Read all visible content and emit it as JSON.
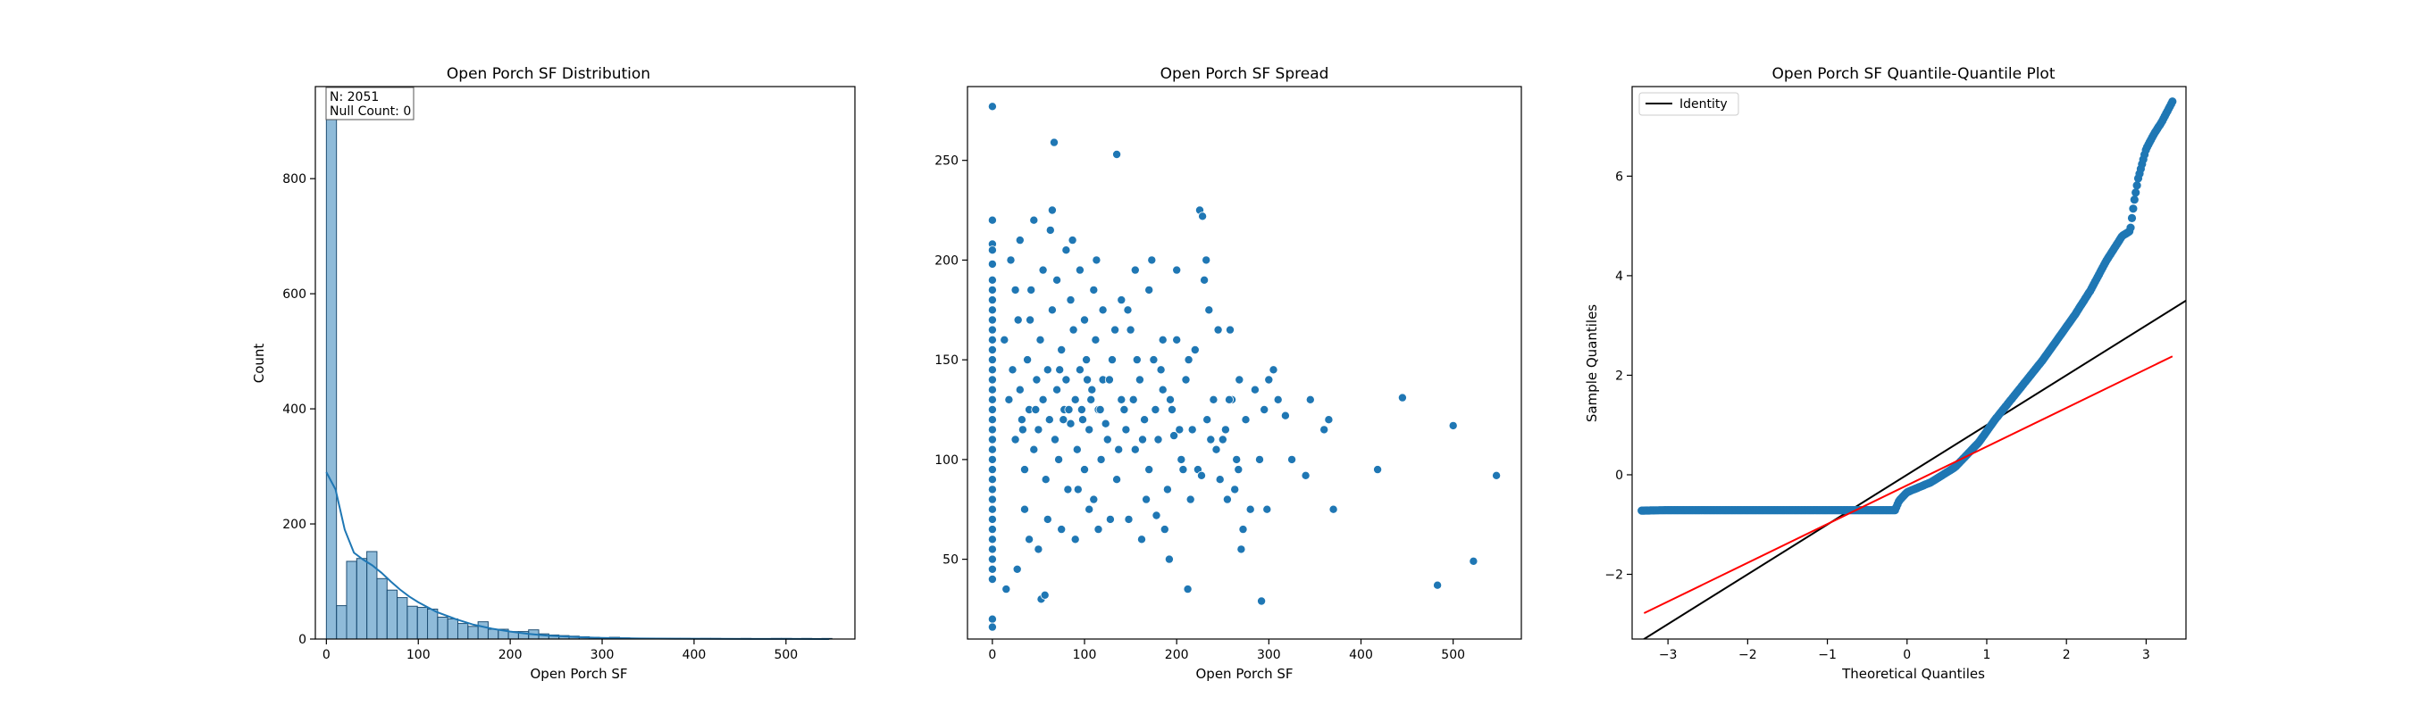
{
  "chart_data": [
    {
      "type": "bar",
      "title": "Open Porch SF Distribution",
      "xlabel": "Open Porch SF",
      "ylabel": "Count",
      "xlim": [
        -12,
        575
      ],
      "ylim": [
        0,
        960
      ],
      "xticks": [
        0,
        100,
        200,
        300,
        400,
        500
      ],
      "yticks": [
        0,
        200,
        400,
        600,
        800
      ],
      "annotation": [
        "N: 2051",
        "Null Count: 0"
      ],
      "bin_width": 11,
      "bins_start": [
        0,
        11,
        22,
        33,
        44,
        55,
        66,
        77,
        88,
        99,
        110,
        121,
        132,
        143,
        154,
        165,
        176,
        187,
        198,
        209,
        220,
        231,
        242,
        253,
        264,
        275,
        286,
        297,
        308,
        319,
        330,
        341,
        352,
        363,
        374,
        385,
        396,
        407,
        418,
        429,
        440,
        451,
        462,
        473,
        484,
        495,
        506,
        517,
        528,
        539
      ],
      "values": [
        930,
        58,
        135,
        140,
        152,
        105,
        85,
        72,
        57,
        55,
        52,
        38,
        35,
        27,
        22,
        30,
        17,
        17,
        13,
        13,
        16,
        9,
        7,
        6,
        5,
        4,
        3,
        2,
        3,
        2,
        1,
        1,
        1,
        1,
        1,
        1,
        0,
        1,
        1,
        0,
        0,
        1,
        0,
        0,
        1,
        1,
        0,
        1,
        0,
        1
      ],
      "kde": {
        "x": [
          0,
          10,
          20,
          30,
          40,
          50,
          60,
          70,
          80,
          90,
          100,
          120,
          140,
          160,
          180,
          200,
          220,
          240,
          260,
          280,
          300,
          340,
          380,
          420,
          460,
          500,
          547
        ],
        "y": [
          290,
          260,
          190,
          150,
          138,
          128,
          115,
          100,
          86,
          74,
          64,
          47,
          35,
          25,
          18,
          13,
          9,
          6,
          4.5,
          3,
          2,
          1,
          0.6,
          0.3,
          0.2,
          0.1,
          0.05
        ]
      }
    },
    {
      "type": "scatter",
      "title": "Open Porch SF Spread",
      "xlabel": "Open Porch SF",
      "ylabel": "",
      "xlim": [
        -27,
        574
      ],
      "ylim": [
        10,
        287
      ],
      "xticks": [
        0,
        100,
        200,
        300,
        400,
        500
      ],
      "yticks": [
        50,
        100,
        150,
        200,
        250
      ],
      "points": [
        [
          0,
          277
        ],
        [
          0,
          220
        ],
        [
          0,
          208
        ],
        [
          0,
          205
        ],
        [
          0,
          198
        ],
        [
          0,
          190
        ],
        [
          0,
          185
        ],
        [
          0,
          180
        ],
        [
          0,
          175
        ],
        [
          0,
          170
        ],
        [
          0,
          165
        ],
        [
          0,
          160
        ],
        [
          0,
          155
        ],
        [
          0,
          150
        ],
        [
          0,
          145
        ],
        [
          0,
          140
        ],
        [
          0,
          135
        ],
        [
          0,
          130
        ],
        [
          0,
          125
        ],
        [
          0,
          120
        ],
        [
          0,
          115
        ],
        [
          0,
          110
        ],
        [
          0,
          105
        ],
        [
          0,
          100
        ],
        [
          0,
          95
        ],
        [
          0,
          90
        ],
        [
          0,
          85
        ],
        [
          0,
          80
        ],
        [
          0,
          75
        ],
        [
          0,
          70
        ],
        [
          0,
          65
        ],
        [
          0,
          60
        ],
        [
          0,
          55
        ],
        [
          0,
          50
        ],
        [
          0,
          45
        ],
        [
          0,
          40
        ],
        [
          0,
          20
        ],
        [
          0,
          16
        ],
        [
          13,
          160
        ],
        [
          18,
          130
        ],
        [
          22,
          145
        ],
        [
          25,
          110
        ],
        [
          28,
          170
        ],
        [
          30,
          135
        ],
        [
          32,
          120
        ],
        [
          35,
          95
        ],
        [
          38,
          150
        ],
        [
          40,
          125
        ],
        [
          42,
          185
        ],
        [
          45,
          105
        ],
        [
          48,
          140
        ],
        [
          50,
          115
        ],
        [
          52,
          160
        ],
        [
          55,
          130
        ],
        [
          58,
          90
        ],
        [
          60,
          145
        ],
        [
          62,
          120
        ],
        [
          65,
          175
        ],
        [
          68,
          110
        ],
        [
          70,
          135
        ],
        [
          72,
          100
        ],
        [
          75,
          155
        ],
        [
          78,
          125
        ],
        [
          80,
          140
        ],
        [
          82,
          85
        ],
        [
          85,
          118
        ],
        [
          88,
          165
        ],
        [
          90,
          130
        ],
        [
          92,
          105
        ],
        [
          95,
          145
        ],
        [
          98,
          120
        ],
        [
          100,
          95
        ],
        [
          102,
          150
        ],
        [
          105,
          115
        ],
        [
          108,
          135
        ],
        [
          110,
          80
        ],
        [
          112,
          160
        ],
        [
          115,
          125
        ],
        [
          118,
          100
        ],
        [
          120,
          140
        ],
        [
          125,
          110
        ],
        [
          130,
          150
        ],
        [
          135,
          90
        ],
        [
          140,
          130
        ],
        [
          145,
          115
        ],
        [
          150,
          165
        ],
        [
          155,
          105
        ],
        [
          160,
          140
        ],
        [
          165,
          120
        ],
        [
          170,
          95
        ],
        [
          175,
          150
        ],
        [
          180,
          110
        ],
        [
          185,
          135
        ],
        [
          190,
          85
        ],
        [
          195,
          125
        ],
        [
          200,
          160
        ],
        [
          205,
          100
        ],
        [
          210,
          140
        ],
        [
          20,
          200
        ],
        [
          25,
          185
        ],
        [
          30,
          210
        ],
        [
          35,
          75
        ],
        [
          40,
          60
        ],
        [
          45,
          220
        ],
        [
          50,
          55
        ],
        [
          55,
          195
        ],
        [
          60,
          70
        ],
        [
          65,
          225
        ],
        [
          70,
          190
        ],
        [
          75,
          65
        ],
        [
          80,
          205
        ],
        [
          85,
          180
        ],
        [
          90,
          60
        ],
        [
          95,
          195
        ],
        [
          100,
          170
        ],
        [
          105,
          75
        ],
        [
          110,
          185
        ],
        [
          115,
          65
        ],
        [
          120,
          175
        ],
        [
          128,
          70
        ],
        [
          135,
          253
        ],
        [
          140,
          180
        ],
        [
          148,
          70
        ],
        [
          155,
          195
        ],
        [
          162,
          60
        ],
        [
          170,
          185
        ],
        [
          178,
          72
        ],
        [
          185,
          160
        ],
        [
          192,
          50
        ],
        [
          200,
          195
        ],
        [
          210,
          140
        ],
        [
          212,
          35
        ],
        [
          215,
          80
        ],
        [
          220,
          155
        ],
        [
          225,
          225
        ],
        [
          228,
          222
        ],
        [
          230,
          190
        ],
        [
          232,
          200
        ],
        [
          235,
          175
        ],
        [
          240,
          130
        ],
        [
          245,
          165
        ],
        [
          250,
          110
        ],
        [
          255,
          80
        ],
        [
          258,
          165
        ],
        [
          260,
          130
        ],
        [
          265,
          100
        ],
        [
          268,
          140
        ],
        [
          270,
          55
        ],
        [
          272,
          65
        ],
        [
          275,
          120
        ],
        [
          280,
          75
        ],
        [
          285,
          135
        ],
        [
          290,
          100
        ],
        [
          292,
          29
        ],
        [
          295,
          125
        ],
        [
          298,
          75
        ],
        [
          300,
          140
        ],
        [
          305,
          145
        ],
        [
          310,
          130
        ],
        [
          318,
          122
        ],
        [
          325,
          100
        ],
        [
          340,
          92
        ],
        [
          345,
          130
        ],
        [
          360,
          115
        ],
        [
          365,
          120
        ],
        [
          370,
          75
        ],
        [
          418,
          95
        ],
        [
          445,
          131
        ],
        [
          483,
          37
        ],
        [
          500,
          117
        ],
        [
          522,
          49
        ],
        [
          547,
          92
        ],
        [
          15,
          35
        ],
        [
          27,
          45
        ],
        [
          33,
          115
        ],
        [
          41,
          170
        ],
        [
          47,
          125
        ],
        [
          53,
          30
        ],
        [
          57,
          32
        ],
        [
          63,
          215
        ],
        [
          67,
          259
        ],
        [
          73,
          145
        ],
        [
          77,
          120
        ],
        [
          83,
          125
        ],
        [
          87,
          210
        ],
        [
          93,
          85
        ],
        [
          97,
          125
        ],
        [
          103,
          140
        ],
        [
          107,
          130
        ],
        [
          113,
          200
        ],
        [
          117,
          125
        ],
        [
          123,
          118
        ],
        [
          127,
          140
        ],
        [
          133,
          165
        ],
        [
          137,
          105
        ],
        [
          143,
          125
        ],
        [
          147,
          175
        ],
        [
          153,
          130
        ],
        [
          157,
          150
        ],
        [
          163,
          110
        ],
        [
          167,
          80
        ],
        [
          173,
          200
        ],
        [
          177,
          125
        ],
        [
          183,
          145
        ],
        [
          187,
          65
        ],
        [
          193,
          130
        ],
        [
          197,
          112
        ],
        [
          203,
          115
        ],
        [
          207,
          95
        ],
        [
          213,
          150
        ],
        [
          217,
          115
        ],
        [
          223,
          95
        ],
        [
          227,
          92
        ],
        [
          233,
          120
        ],
        [
          237,
          110
        ],
        [
          243,
          105
        ],
        [
          247,
          90
        ],
        [
          253,
          115
        ],
        [
          257,
          130
        ],
        [
          263,
          85
        ],
        [
          267,
          95
        ]
      ],
      "point_color": "#1f77b4"
    },
    {
      "type": "scatter",
      "title": "Open Porch SF Quantile-Quantile Plot",
      "xlabel": "Theoretical Quantiles",
      "ylabel": "Sample Quantiles",
      "xlim": [
        -3.45,
        3.5
      ],
      "ylim": [
        -3.3,
        7.8
      ],
      "xticks": [
        -3,
        -2,
        -1,
        0,
        1,
        2,
        3
      ],
      "yticks": [
        -2,
        0,
        2,
        4,
        6
      ],
      "legend": {
        "entries": [
          "Identity"
        ],
        "placement": "upper left"
      },
      "identity_color": "#000000",
      "fit_line": {
        "x": [
          -3.3,
          3.33
        ],
        "y": [
          -2.78,
          2.38
        ],
        "color": "#ff0000"
      },
      "sample_curve": {
        "x": [
          -3.33,
          -3.0,
          -2.5,
          -2.0,
          -1.5,
          -1.0,
          -0.5,
          -0.15,
          -0.1,
          0.0,
          0.3,
          0.6,
          0.9,
          1.1,
          1.3,
          1.5,
          1.7,
          1.9,
          2.1,
          2.3,
          2.5,
          2.7,
          2.8,
          2.85,
          2.9,
          3.0,
          3.1,
          3.2,
          3.33
        ],
        "y": [
          -0.72,
          -0.71,
          -0.71,
          -0.71,
          -0.71,
          -0.71,
          -0.71,
          -0.71,
          -0.52,
          -0.35,
          -0.15,
          0.15,
          0.65,
          1.1,
          1.5,
          1.9,
          2.3,
          2.75,
          3.2,
          3.7,
          4.3,
          4.8,
          4.9,
          5.5,
          5.95,
          6.55,
          6.85,
          7.1,
          7.5
        ]
      },
      "point_color": "#1f77b4"
    }
  ]
}
